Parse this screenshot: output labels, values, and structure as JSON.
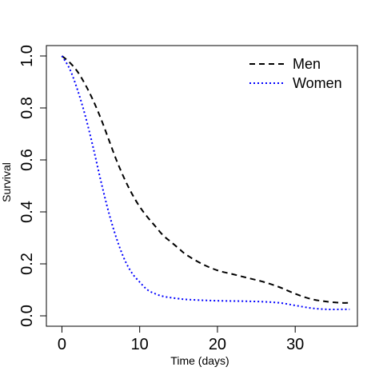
{
  "chart_data": {
    "type": "line",
    "xlabel": "Time (days)",
    "ylabel": "Survival",
    "xlim": [
      -2,
      38
    ],
    "ylim": [
      -0.04,
      1.04
    ],
    "x_ticks": [
      0,
      10,
      20,
      30
    ],
    "y_ticks": [
      0.0,
      0.2,
      0.4,
      0.6,
      0.8,
      1.0
    ],
    "x_tick_labels": [
      "0",
      "10",
      "20",
      "30"
    ],
    "y_tick_labels": [
      "0.0",
      "0.2",
      "0.4",
      "0.6",
      "0.8",
      "1.0"
    ],
    "grid": false,
    "legend": "top-right",
    "series": [
      {
        "name": "Men",
        "color": "#000000",
        "dash": "dashed",
        "x": [
          0,
          1,
          2,
          3,
          4,
          5,
          6,
          7,
          8,
          9,
          10,
          11,
          12,
          13,
          14,
          15,
          16,
          18,
          20,
          22,
          24,
          26,
          28,
          30,
          32,
          34,
          36,
          37
        ],
        "y": [
          1.0,
          0.975,
          0.94,
          0.89,
          0.83,
          0.76,
          0.68,
          0.6,
          0.53,
          0.47,
          0.42,
          0.38,
          0.345,
          0.31,
          0.285,
          0.26,
          0.235,
          0.2,
          0.175,
          0.16,
          0.145,
          0.13,
          0.11,
          0.085,
          0.065,
          0.055,
          0.05,
          0.05
        ]
      },
      {
        "name": "Women",
        "color": "#0000ff",
        "dash": "dotted",
        "x": [
          0,
          1,
          2,
          3,
          4,
          5,
          6,
          7,
          8,
          9,
          10,
          11,
          12,
          13,
          14,
          15,
          16,
          18,
          20,
          22,
          24,
          26,
          28,
          30,
          32,
          34,
          36,
          37
        ],
        "y": [
          1.0,
          0.95,
          0.87,
          0.77,
          0.65,
          0.52,
          0.4,
          0.3,
          0.22,
          0.165,
          0.13,
          0.1,
          0.085,
          0.075,
          0.07,
          0.066,
          0.063,
          0.06,
          0.058,
          0.057,
          0.056,
          0.054,
          0.05,
          0.04,
          0.03,
          0.025,
          0.025,
          0.025
        ]
      }
    ]
  }
}
